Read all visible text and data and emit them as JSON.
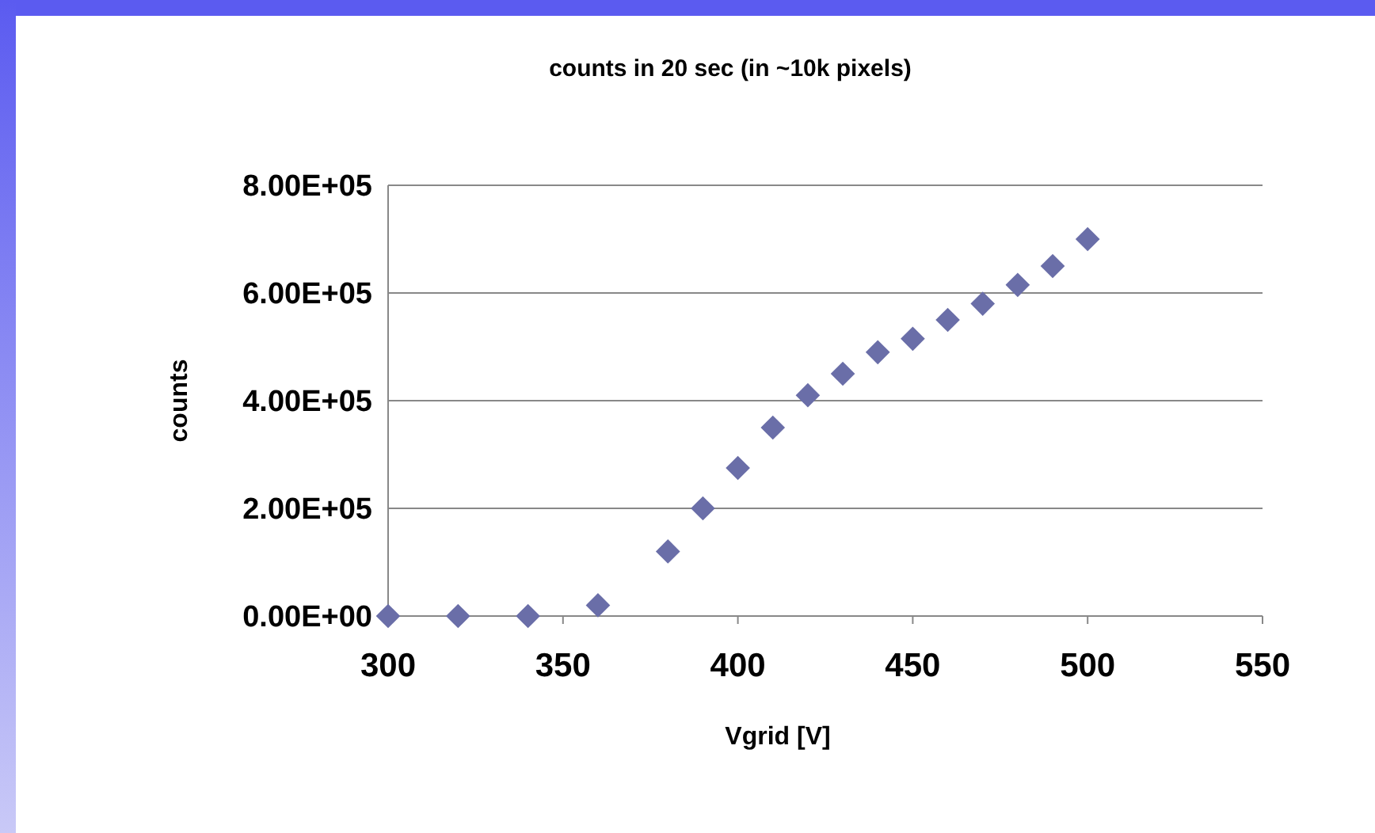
{
  "chart_data": {
    "type": "scatter",
    "title": "counts in 20 sec (in ~10k pixels)",
    "xlabel": "Vgrid [V]",
    "ylabel": "counts",
    "x": [
      300,
      320,
      340,
      360,
      380,
      390,
      400,
      410,
      420,
      430,
      440,
      450,
      460,
      470,
      480,
      490,
      500
    ],
    "series": [
      {
        "color": "#6a6ea8",
        "values": [
          0,
          0,
          0,
          20000,
          120000,
          200000,
          275000,
          350000,
          410000,
          450000,
          490000,
          515000,
          550000,
          580000,
          615000,
          650000,
          700000
        ]
      }
    ],
    "xlim": [
      300,
      550
    ],
    "xticks": [
      300,
      350,
      400,
      450,
      500,
      550
    ],
    "ylim": [
      0,
      800000
    ],
    "yticks": [
      {
        "value": 0,
        "label": "0.00E+00"
      },
      {
        "value": 200000,
        "label": "2.00E+05"
      },
      {
        "value": 400000,
        "label": "4.00E+05"
      },
      {
        "value": 600000,
        "label": "6.00E+05"
      },
      {
        "value": 800000,
        "label": "8.00E+05"
      }
    ],
    "grid": "y",
    "marker": "diamond"
  }
}
